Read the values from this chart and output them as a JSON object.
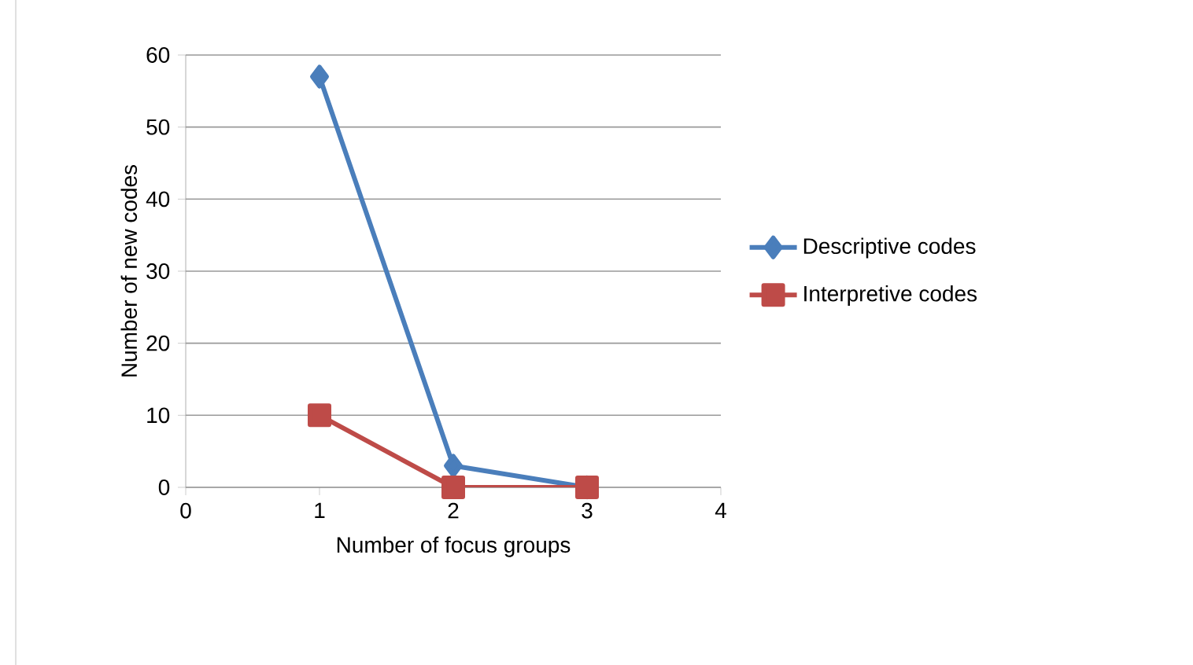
{
  "chart_data": {
    "type": "line",
    "xlabel": "Number of focus groups",
    "ylabel": "Number of new codes",
    "x": [
      1,
      2,
      3
    ],
    "xlim": [
      0,
      4
    ],
    "xticks": [
      0,
      1,
      2,
      3,
      4
    ],
    "ylim": [
      0,
      60
    ],
    "yticks": [
      0,
      10,
      20,
      30,
      40,
      50,
      60
    ],
    "grid": "y",
    "legend": "right",
    "series": [
      {
        "name": "Descriptive codes",
        "color": "#4a7ebb",
        "marker": "diamond",
        "values": [
          57,
          3,
          0
        ]
      },
      {
        "name": "Interpretive codes",
        "color": "#be4b48",
        "marker": "square",
        "values": [
          10,
          0,
          0
        ]
      }
    ]
  }
}
